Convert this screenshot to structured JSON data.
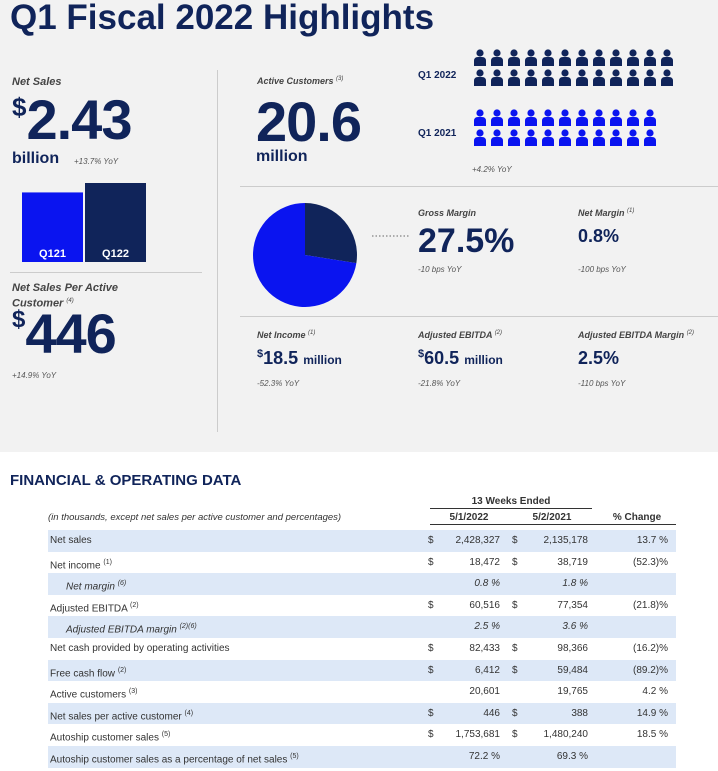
{
  "header": {
    "title": "Q1 Fiscal 2022 Highlights"
  },
  "net_sales": {
    "label": "Net Sales",
    "currency": "$",
    "value": "2.43",
    "unit": "billion",
    "change": "+13.7% YoY",
    "bar_chart": {
      "type": "bar",
      "categories": [
        "Q121",
        "Q122"
      ],
      "values": [
        2.14,
        2.43
      ],
      "colors": [
        "#0a14f0",
        "#10245a"
      ]
    }
  },
  "per_customer": {
    "label": "Net Sales Per Active Customer",
    "note": "(4)",
    "currency": "$",
    "value": "446",
    "change": "+14.9% YoY"
  },
  "active_customers": {
    "label": "Active Customers",
    "note": "(3)",
    "value": "20.6",
    "unit": "million",
    "rows": [
      {
        "label": "Q1 2022",
        "color": "#10245a"
      },
      {
        "label": "Q1 2021",
        "color": "#0a14f0"
      }
    ],
    "change": "+4.2% YoY"
  },
  "margin_pie": {
    "type": "pie",
    "values": [
      27.5,
      72.5
    ],
    "colors": [
      "#10245a",
      "#0a14f0"
    ]
  },
  "metrics": [
    {
      "label": "Gross Margin",
      "value": "27.5%",
      "change": "-10 bps YoY"
    },
    {
      "label": "Net Margin",
      "note": "(1)",
      "value": "0.8%",
      "change": "-100 bps YoY"
    },
    {
      "label": "Net Income",
      "note": "(1)",
      "currency": "$",
      "value": "18.5",
      "unit": "million",
      "change": "-52.3% YoY"
    },
    {
      "label": "Adjusted EBITDA",
      "note": "(2)",
      "currency": "$",
      "value": "60.5",
      "unit": "million",
      "change": "-21.8% YoY"
    },
    {
      "label": "Adjusted EBITDA Margin",
      "note": "(2)",
      "value": "2.5%",
      "change": "-110 bps YoY"
    }
  ],
  "table": {
    "title": "FINANCIAL & OPERATING DATA",
    "period": "13 Weeks Ended",
    "note": "(in thousands, except net sales per active customer and percentages)",
    "columns": [
      "5/1/2022",
      "5/2/2021",
      "% Change"
    ],
    "rows": [
      {
        "label": "Net sales",
        "c1": "$",
        "v1": "2,428,327",
        "c2": "$",
        "v2": "2,135,178",
        "change": "13.7 %"
      },
      {
        "label": "Net income",
        "note": "(1)",
        "c1": "$",
        "v1": "18,472",
        "c2": "$",
        "v2": "38,719",
        "change": "(52.3)%"
      },
      {
        "label": "Net margin",
        "note": "(6)",
        "indent": true,
        "v1": "0.8 %",
        "v2": "1.8 %"
      },
      {
        "label": "Adjusted EBITDA",
        "note": "(2)",
        "c1": "$",
        "v1": "60,516",
        "c2": "$",
        "v2": "77,354",
        "change": "(21.8)%"
      },
      {
        "label": "Adjusted EBITDA margin",
        "note": "(2)(6)",
        "indent": true,
        "v1": "2.5 %",
        "v2": "3.6 %"
      },
      {
        "label": "Net cash provided by operating activities",
        "c1": "$",
        "v1": "82,433",
        "c2": "$",
        "v2": "98,366",
        "change": "(16.2)%"
      },
      {
        "label": "Free cash flow",
        "note": "(2)",
        "c1": "$",
        "v1": "6,412",
        "c2": "$",
        "v2": "59,484",
        "change": "(89.2)%"
      },
      {
        "label": "Active customers",
        "note": "(3)",
        "v1": "20,601",
        "v2": "19,765",
        "change": "4.2 %"
      },
      {
        "label": "Net sales per active customer",
        "note": "(4)",
        "c1": "$",
        "v1": "446",
        "c2": "$",
        "v2": "388",
        "change": "14.9 %"
      },
      {
        "label": "Autoship customer sales",
        "note": "(5)",
        "c1": "$",
        "v1": "1,753,681",
        "c2": "$",
        "v2": "1,480,240",
        "change": "18.5 %"
      },
      {
        "label": "Autoship customer sales as a percentage of net sales",
        "note": "(5)",
        "v1": "72.2 %",
        "v2": "69.3 %"
      }
    ]
  }
}
